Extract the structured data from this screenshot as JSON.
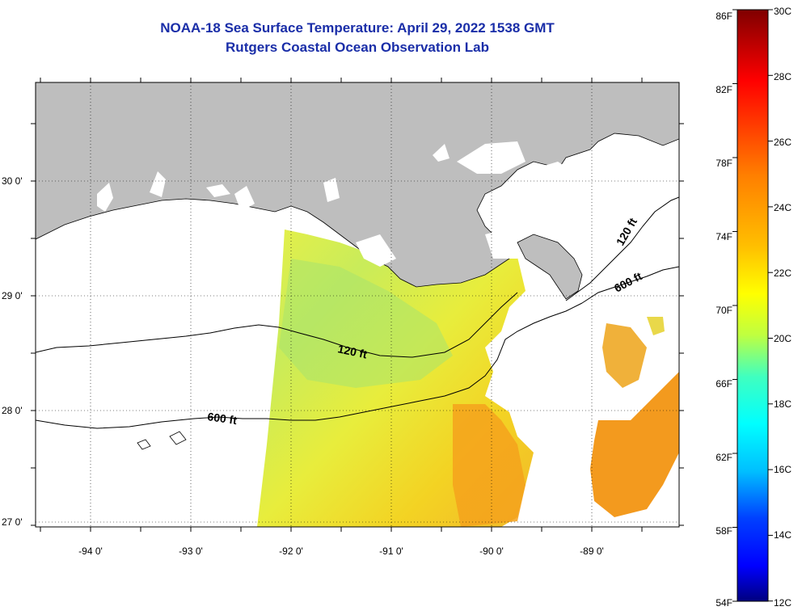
{
  "header": {
    "title_line1": "NOAA-18 Sea Surface Temperature:  April 29, 2022 1538 GMT",
    "title_line2": "Rutgers Coastal Ocean Observation Lab"
  },
  "map": {
    "lon_labels": [
      "-94 0'",
      "-93 0'",
      "-92 0'",
      "-91 0'",
      "-90 0'",
      "-89 0'"
    ],
    "lat_labels": [
      "30 0'",
      "29 0'",
      "28 0'",
      "27 0'"
    ],
    "contour_labels": [
      "120 ft",
      "600 ft",
      "120 ft",
      "600 ft"
    ],
    "colors": {
      "land": "#bebebe",
      "no_data": "#ffffff",
      "contour": "#000000",
      "grid": "#000000"
    }
  },
  "colorbar": {
    "fahrenheit_labels": [
      "86F",
      "82F",
      "78F",
      "74F",
      "70F",
      "66F",
      "62F",
      "58F",
      "54F"
    ],
    "celsius_labels": [
      "30C",
      "28C",
      "26C",
      "24C",
      "22C",
      "20C",
      "18C",
      "16C",
      "14C",
      "12C"
    ],
    "colors": [
      "#00007f",
      "#0000ff",
      "#007fff",
      "#00ffff",
      "#7fff7f",
      "#ffff00",
      "#ff7f00",
      "#ff0000",
      "#7f0000"
    ]
  }
}
